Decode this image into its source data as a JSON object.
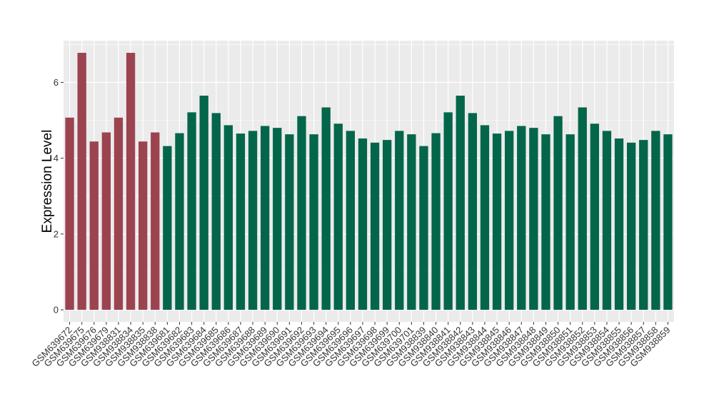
{
  "chart_data": {
    "type": "bar",
    "ylabel": "Expression Level",
    "xlabel": "",
    "ylim": [
      -0.32,
      7.1
    ],
    "yticks": [
      0,
      2,
      4,
      6
    ],
    "grid": true,
    "legend": "none",
    "colors": {
      "group_a": "#9c4350",
      "group_b": "#03664a",
      "panel": "#ebebeb",
      "grid": "#ffffff"
    },
    "categories": [
      "GSM639672",
      "GSM639675",
      "GSM639676",
      "GSM639679",
      "GSM938831",
      "GSM938834",
      "GSM938835",
      "GSM938838",
      "GSM639681",
      "GSM639682",
      "GSM639683",
      "GSM639684",
      "GSM639685",
      "GSM639686",
      "GSM639687",
      "GSM639688",
      "GSM639689",
      "GSM639690",
      "GSM639691",
      "GSM639692",
      "GSM639693",
      "GSM639694",
      "GSM639695",
      "GSM639696",
      "GSM639697",
      "GSM639698",
      "GSM639699",
      "GSM639700",
      "GSM639701",
      "GSM938839",
      "GSM938840",
      "GSM938841",
      "GSM938842",
      "GSM938843",
      "GSM938844",
      "GSM938845",
      "GSM938846",
      "GSM938847",
      "GSM938848",
      "GSM938849",
      "GSM938850",
      "GSM938851",
      "GSM938852",
      "GSM938853",
      "GSM938854",
      "GSM938855",
      "GSM938856",
      "GSM938857",
      "GSM938858",
      "GSM938859"
    ],
    "values": [
      5.07,
      6.78,
      4.44,
      4.68,
      5.07,
      6.78,
      4.44,
      4.68,
      4.32,
      4.66,
      5.21,
      5.65,
      5.19,
      4.87,
      4.65,
      4.72,
      4.85,
      4.8,
      4.63,
      5.11,
      4.63,
      5.34,
      4.91,
      4.72,
      4.52,
      4.41,
      4.48,
      4.72,
      4.63,
      4.32,
      4.66,
      5.21,
      5.65,
      5.19,
      4.87,
      4.65,
      4.72,
      4.85,
      4.8,
      4.63,
      5.11,
      4.63,
      5.34,
      4.91,
      4.72,
      4.52,
      4.41,
      4.48,
      4.72,
      4.63
    ],
    "groups": [
      "a",
      "a",
      "a",
      "a",
      "a",
      "a",
      "a",
      "a",
      "b",
      "b",
      "b",
      "b",
      "b",
      "b",
      "b",
      "b",
      "b",
      "b",
      "b",
      "b",
      "b",
      "b",
      "b",
      "b",
      "b",
      "b",
      "b",
      "b",
      "b",
      "b",
      "b",
      "b",
      "b",
      "b",
      "b",
      "b",
      "b",
      "b",
      "b",
      "b",
      "b",
      "b",
      "b",
      "b",
      "b",
      "b",
      "b",
      "b",
      "b",
      "b"
    ]
  }
}
